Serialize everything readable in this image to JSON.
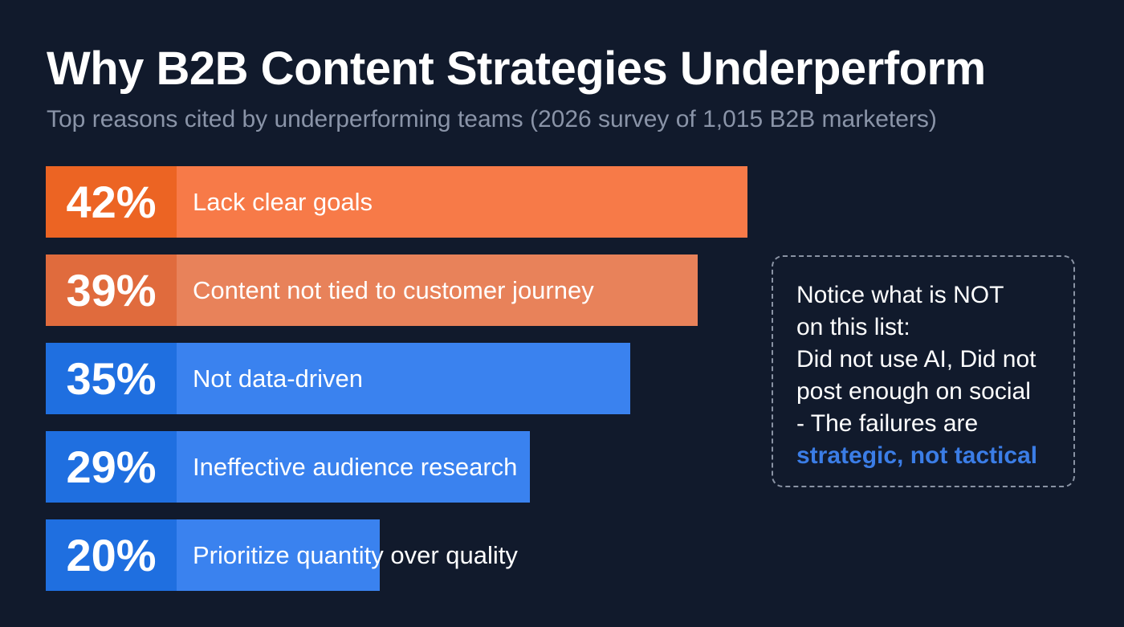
{
  "header": {
    "title": "Why B2B Content Strategies Underperform",
    "subtitle": "Top reasons cited by underperforming teams (2026 survey of 1,015 B2B marketers)"
  },
  "chart_data": {
    "type": "bar",
    "orientation": "horizontal",
    "title": "Why B2B Content Strategies Underperform",
    "subtitle": "Top reasons cited by underperforming teams (2026 survey of 1,015 B2B marketers)",
    "categories": [
      "Lack clear goals",
      "Content not tied to customer journey",
      "Not data-driven",
      "Ineffective audience research",
      "Prioritize quantity over quality"
    ],
    "values": [
      42,
      39,
      35,
      29,
      20
    ],
    "value_labels": [
      "42%",
      "39%",
      "35%",
      "29%",
      "20%"
    ],
    "unit": "%",
    "xlabel": "",
    "ylabel": "",
    "grid": false,
    "legend": "none",
    "colors": [
      "#f77a48",
      "#e8825a",
      "#3a82ef",
      "#3a82ef",
      "#3a82ef"
    ],
    "value_box_colors": [
      "#ec6423",
      "#e06b3d",
      "#1f6fe0",
      "#1f6fe0",
      "#1f6fe0"
    ]
  },
  "callout": {
    "lines": [
      "Notice what is NOT",
      "on this list:",
      "Did not use AI, Did not",
      "post enough on social",
      "- The failures are"
    ],
    "highlight": "strategic, not tactical",
    "highlight_color": "#3b7de6"
  }
}
